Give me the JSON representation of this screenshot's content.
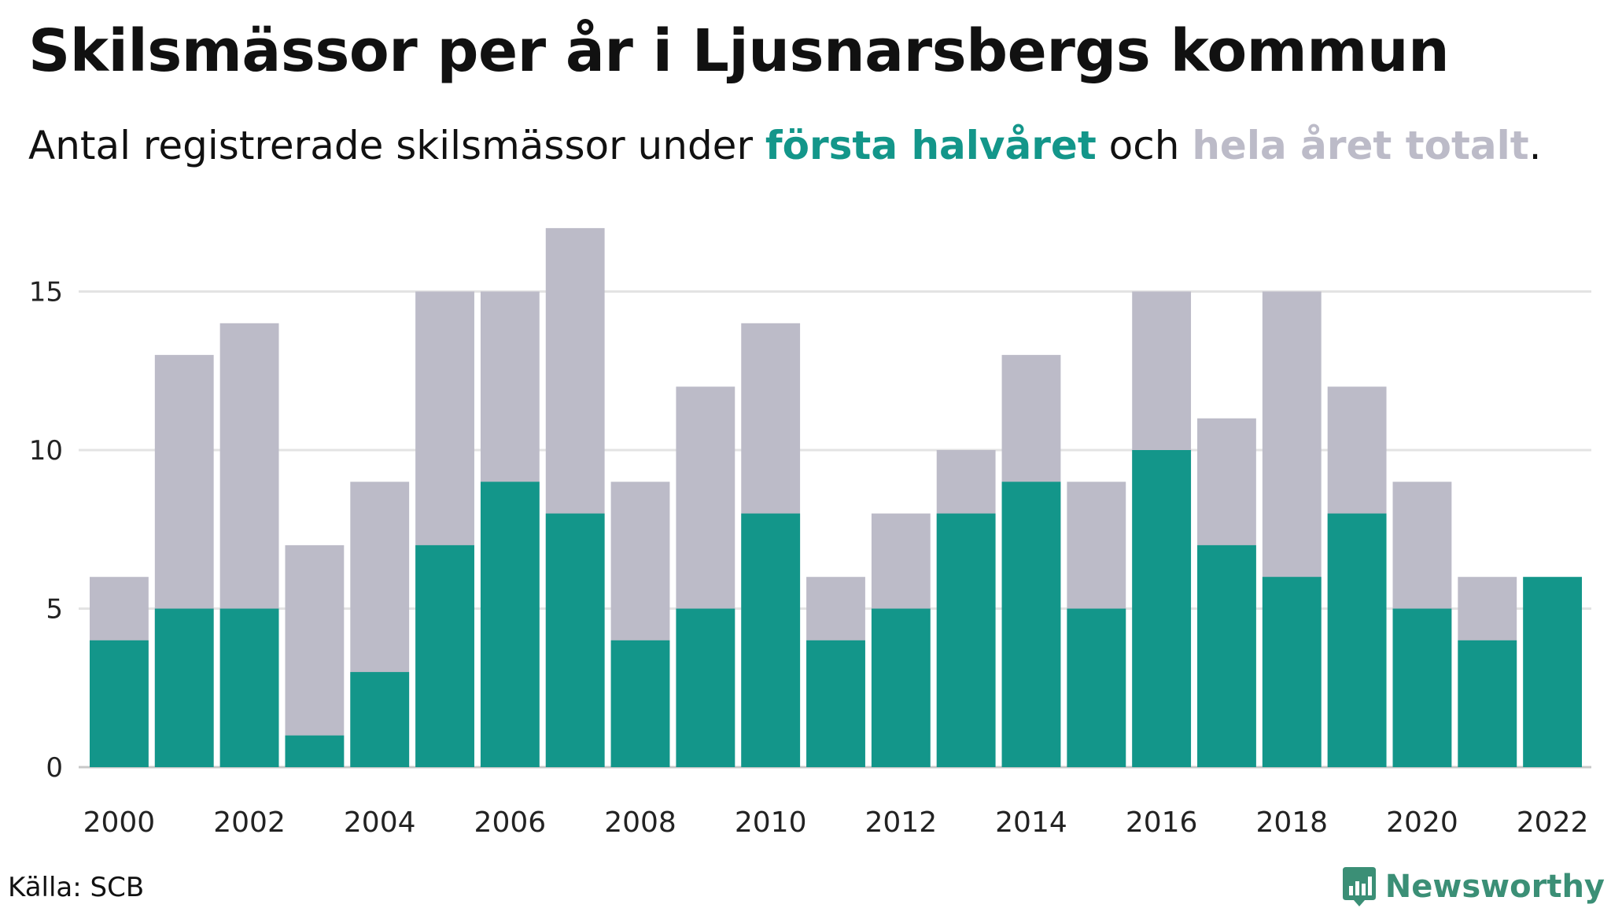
{
  "header": {
    "title": "Skilsmässor per år i Ljusnarsbergs kommun",
    "subtitle_prefix": "Antal registrerade skilsmässor under ",
    "subtitle_first": "första halvåret",
    "subtitle_mid": " och ",
    "subtitle_total": "hela året totalt",
    "subtitle_suffix": "."
  },
  "footer": {
    "source": "Källa: SCB",
    "brand": "Newsworthy"
  },
  "colors": {
    "first_half": "#13968a",
    "full_year": "#bcbbc8",
    "grid": "#e3e3e3",
    "brand": "#3b8f76"
  },
  "chart_data": {
    "type": "bar",
    "stacking": "overlay",
    "categories": [
      "2000",
      "2001",
      "2002",
      "2003",
      "2004",
      "2005",
      "2006",
      "2007",
      "2008",
      "2009",
      "2010",
      "2011",
      "2012",
      "2013",
      "2014",
      "2015",
      "2016",
      "2017",
      "2018",
      "2019",
      "2020",
      "2021",
      "2022"
    ],
    "x_tick_labels": [
      "2000",
      "2002",
      "2004",
      "2006",
      "2008",
      "2010",
      "2012",
      "2014",
      "2016",
      "2018",
      "2020",
      "2022"
    ],
    "series": [
      {
        "key": "full_year",
        "values": [
          6,
          13,
          14,
          7,
          9,
          15,
          15,
          17,
          9,
          12,
          14,
          6,
          8,
          10,
          13,
          9,
          15,
          11,
          15,
          12,
          9,
          6,
          null
        ]
      },
      {
        "key": "first_half",
        "values": [
          4,
          5,
          5,
          1,
          3,
          7,
          9,
          8,
          4,
          5,
          8,
          4,
          5,
          8,
          9,
          5,
          10,
          7,
          6,
          8,
          5,
          4,
          6
        ]
      }
    ],
    "yticks": [
      0,
      5,
      10,
      15
    ],
    "ylim": [
      0,
      17
    ],
    "grid": true
  }
}
